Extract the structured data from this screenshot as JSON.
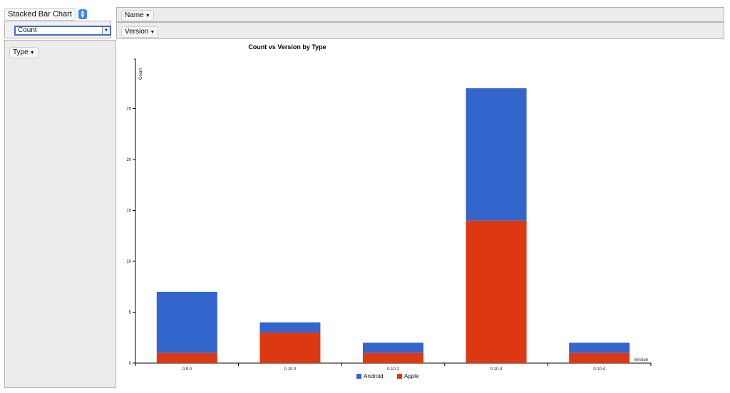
{
  "renderer": {
    "label": "Stacked Bar Chart",
    "stepper_icon": "up-down-arrows-icon"
  },
  "aggregator": {
    "value": "Count",
    "arrow_icon": "dropdown-arrow-icon"
  },
  "rows": {
    "fields": [
      "Type"
    ]
  },
  "cols": {
    "row1": [
      "Name"
    ],
    "row2": [
      "Version"
    ]
  },
  "chart_data": {
    "type": "bar",
    "stacked": true,
    "title": "Count vs Version by Type",
    "xlabel": "Version",
    "ylabel": "Count",
    "categories": [
      "0.9.0",
      "0.10.0",
      "0.10.2",
      "0.10.3",
      "0.10.4"
    ],
    "series": [
      {
        "name": "Apple",
        "color": "#dc3912",
        "values": [
          1,
          3,
          1,
          14,
          1
        ]
      },
      {
        "name": "Android",
        "color": "#3366cc",
        "values": [
          6,
          1,
          1,
          13,
          1
        ]
      }
    ],
    "ylim": [
      0,
      30
    ],
    "yticks": [
      0,
      5,
      10,
      15,
      20,
      25
    ],
    "legend_order": [
      "Android",
      "Apple"
    ],
    "legend_position": "bottom",
    "grid": false
  }
}
